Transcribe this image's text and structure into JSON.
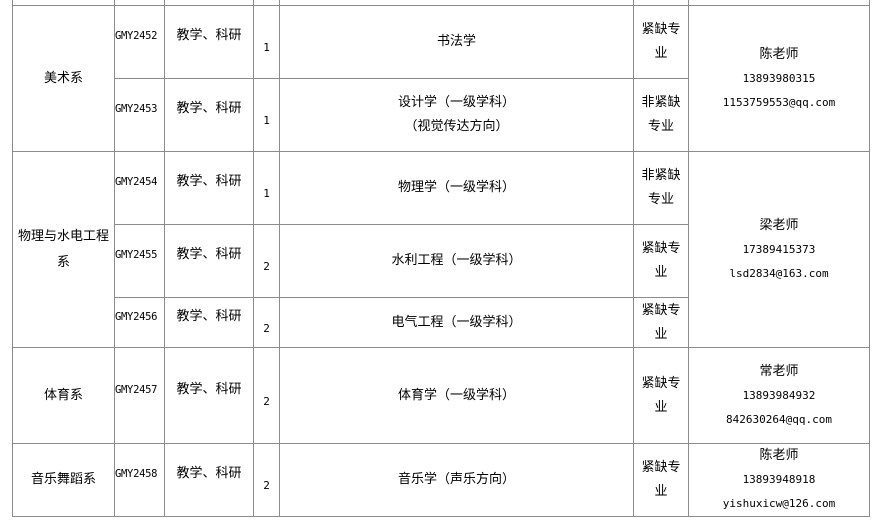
{
  "departments": [
    {
      "name": "美术系",
      "contact": {
        "name": "陈老师",
        "phone": "13893980315",
        "email": "1153759553@qq.com"
      },
      "positions": [
        {
          "code": "GMY2452",
          "type": "教学、科研",
          "count": "1",
          "major": [
            "书法学"
          ],
          "category": [
            "紧缺专",
            "业"
          ]
        },
        {
          "code": "GMY2453",
          "type": "教学、科研",
          "count": "1",
          "major": [
            "设计学（一级学科）",
            "（视觉传达方向）"
          ],
          "category": [
            "非紧缺",
            "专业"
          ]
        }
      ]
    },
    {
      "name": "物理与水电工程系",
      "contact": {
        "name": "梁老师",
        "phone": "17389415373",
        "email": "lsd2834@163.com"
      },
      "positions": [
        {
          "code": "GMY2454",
          "type": "教学、科研",
          "count": "1",
          "major": [
            "物理学（一级学科）"
          ],
          "category": [
            "非紧缺",
            "专业"
          ]
        },
        {
          "code": "GMY2455",
          "type": "教学、科研",
          "count": "2",
          "major": [
            "水利工程（一级学科）"
          ],
          "category": [
            "紧缺专",
            "业"
          ]
        },
        {
          "code": "GMY2456",
          "type": "教学、科研",
          "count": "2",
          "major": [
            "电气工程（一级学科）"
          ],
          "category": [
            "紧缺专",
            "业"
          ]
        }
      ]
    },
    {
      "name": "体育系",
      "contact": {
        "name": "常老师",
        "phone": "13893984932",
        "email": "842630264@qq.com"
      },
      "positions": [
        {
          "code": "GMY2457",
          "type": "教学、科研",
          "count": "2",
          "major": [
            "体育学（一级学科）"
          ],
          "category": [
            "紧缺专",
            "业"
          ]
        }
      ]
    },
    {
      "name": "音乐舞蹈系",
      "contact": {
        "name": "陈老师",
        "phone": "13893948918",
        "email": "yishuxicw@126.com"
      },
      "positions": [
        {
          "code": "GMY2458",
          "type": "教学、科研",
          "count": "2",
          "major": [
            "音乐学（声乐方向）"
          ],
          "category": [
            "紧缺专",
            "业"
          ]
        }
      ]
    }
  ]
}
